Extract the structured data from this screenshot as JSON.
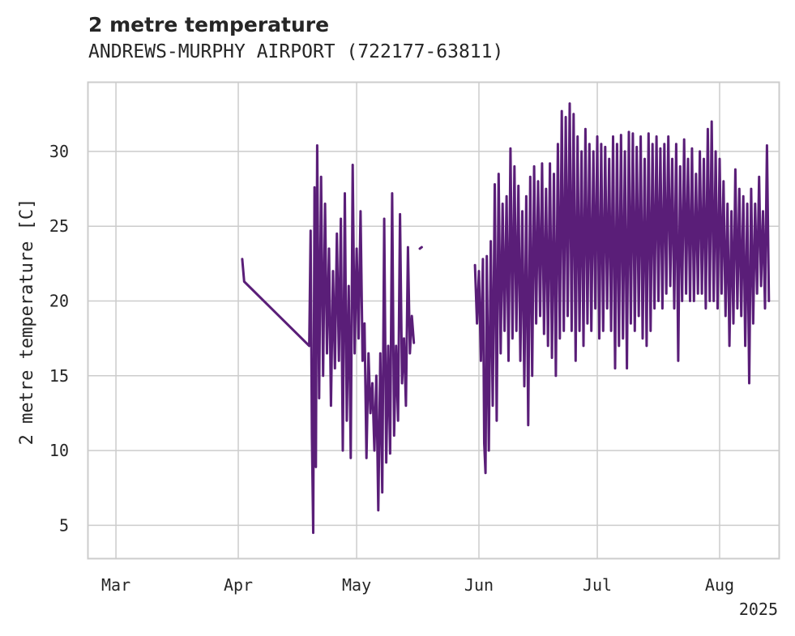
{
  "chart_data": {
    "type": "line",
    "title": "2 metre temperature",
    "subtitle": "ANDREWS-MURPHY AIRPORT (722177-63811)",
    "ylabel": "2 metre temperature [C]",
    "xlabel": "",
    "x_range": [
      "2025-02-22",
      "2025-08-16"
    ],
    "ylim": [
      2.8,
      34.6
    ],
    "y_ticks": [
      5,
      10,
      15,
      20,
      25,
      30
    ],
    "x_ticks": [
      {
        "date": "2025-03-01",
        "label": "Mar"
      },
      {
        "date": "2025-04-01",
        "label": "Apr"
      },
      {
        "date": "2025-05-01",
        "label": "May"
      },
      {
        "date": "2025-06-01",
        "label": "Jun"
      },
      {
        "date": "2025-07-01",
        "label": "Jul"
      },
      {
        "date": "2025-08-01",
        "label": "Aug"
      }
    ],
    "x_offset_label": "2025",
    "grid": true,
    "series": [
      {
        "color": "#5a1e78",
        "points": [
          [
            "2025-04-02",
            22.8
          ],
          [
            "2025-04-02",
            21.3
          ],
          [
            "2025-04-19",
            17.0
          ],
          [
            "2025-04-19",
            24.7
          ],
          [
            "2025-04-19",
            11.0
          ],
          [
            "2025-04-20",
            4.5
          ],
          [
            "2025-04-20",
            27.6
          ],
          [
            "2025-04-20",
            8.9
          ],
          [
            "2025-04-21",
            30.4
          ],
          [
            "2025-04-21",
            13.5
          ],
          [
            "2025-04-22",
            28.3
          ],
          [
            "2025-04-22",
            15.0
          ],
          [
            "2025-04-23",
            26.5
          ],
          [
            "2025-04-23",
            16.5
          ],
          [
            "2025-04-24",
            23.5
          ],
          [
            "2025-04-24",
            13.0
          ],
          [
            "2025-04-25",
            22.0
          ],
          [
            "2025-04-25",
            15.5
          ],
          [
            "2025-04-26",
            24.5
          ],
          [
            "2025-04-26",
            16.0
          ],
          [
            "2025-04-27",
            25.5
          ],
          [
            "2025-04-27",
            10.0
          ],
          [
            "2025-04-28",
            27.2
          ],
          [
            "2025-04-28",
            12.0
          ],
          [
            "2025-04-29",
            21.0
          ],
          [
            "2025-04-29",
            9.5
          ],
          [
            "2025-04-30",
            29.1
          ],
          [
            "2025-04-30",
            16.5
          ],
          [
            "2025-05-01",
            23.5
          ],
          [
            "2025-05-01",
            17.5
          ],
          [
            "2025-05-02",
            26.0
          ],
          [
            "2025-05-02",
            16.0
          ],
          [
            "2025-05-03",
            18.5
          ],
          [
            "2025-05-03",
            9.5
          ],
          [
            "2025-05-04",
            16.5
          ],
          [
            "2025-05-04",
            12.5
          ],
          [
            "2025-05-05",
            14.5
          ],
          [
            "2025-05-05",
            10.0
          ],
          [
            "2025-05-06",
            15.0
          ],
          [
            "2025-05-06",
            6.0
          ],
          [
            "2025-05-07",
            16.5
          ],
          [
            "2025-05-07",
            7.2
          ],
          [
            "2025-05-08",
            25.5
          ],
          [
            "2025-05-08",
            9.2
          ],
          [
            "2025-05-09",
            17.0
          ],
          [
            "2025-05-09",
            9.8
          ],
          [
            "2025-05-10",
            27.2
          ],
          [
            "2025-05-10",
            11.0
          ],
          [
            "2025-05-11",
            17.0
          ],
          [
            "2025-05-11",
            12.0
          ],
          [
            "2025-05-12",
            25.8
          ],
          [
            "2025-05-12",
            14.5
          ],
          [
            "2025-05-13",
            17.5
          ],
          [
            "2025-05-13",
            13.0
          ],
          [
            "2025-05-14",
            23.6
          ],
          [
            "2025-05-14",
            16.5
          ],
          [
            "2025-05-15",
            19.0
          ],
          [
            "2025-05-15",
            17.2
          ],
          null,
          [
            "2025-05-17",
            23.5
          ],
          [
            "2025-05-17",
            23.6
          ],
          null,
          [
            "2025-05-31",
            22.4
          ],
          [
            "2025-05-31",
            18.5
          ],
          [
            "2025-06-01",
            22.0
          ],
          [
            "2025-06-01",
            16.0
          ],
          [
            "2025-06-02",
            22.8
          ],
          [
            "2025-06-02",
            10.5
          ],
          [
            "2025-06-02",
            8.5
          ],
          [
            "2025-06-03",
            23.0
          ],
          [
            "2025-06-03",
            10.0
          ],
          [
            "2025-06-04",
            24.0
          ],
          [
            "2025-06-04",
            13.0
          ],
          [
            "2025-06-05",
            27.8
          ],
          [
            "2025-06-05",
            12.0
          ],
          [
            "2025-06-06",
            28.5
          ],
          [
            "2025-06-06",
            16.5
          ],
          [
            "2025-06-07",
            26.5
          ],
          [
            "2025-06-07",
            18.0
          ],
          [
            "2025-06-08",
            27.0
          ],
          [
            "2025-06-08",
            16.0
          ],
          [
            "2025-06-09",
            30.2
          ],
          [
            "2025-06-09",
            17.5
          ],
          [
            "2025-06-10",
            29.0
          ],
          [
            "2025-06-10",
            18.0
          ],
          [
            "2025-06-11",
            27.7
          ],
          [
            "2025-06-11",
            16.0
          ],
          [
            "2025-06-12",
            26.0
          ],
          [
            "2025-06-12",
            14.3
          ],
          [
            "2025-06-13",
            27.0
          ],
          [
            "2025-06-13",
            11.7
          ],
          [
            "2025-06-14",
            28.3
          ],
          [
            "2025-06-14",
            15.0
          ],
          [
            "2025-06-15",
            29.0
          ],
          [
            "2025-06-15",
            18.5
          ],
          [
            "2025-06-16",
            28.0
          ],
          [
            "2025-06-16",
            19.0
          ],
          [
            "2025-06-17",
            29.2
          ],
          [
            "2025-06-17",
            17.8
          ],
          [
            "2025-06-18",
            27.5
          ],
          [
            "2025-06-18",
            17.0
          ],
          [
            "2025-06-19",
            29.2
          ],
          [
            "2025-06-19",
            16.2
          ],
          [
            "2025-06-20",
            28.5
          ],
          [
            "2025-06-20",
            15.0
          ],
          [
            "2025-06-21",
            30.5
          ],
          [
            "2025-06-21",
            17.5
          ],
          [
            "2025-06-22",
            32.7
          ],
          [
            "2025-06-22",
            18.0
          ],
          [
            "2025-06-23",
            32.3
          ],
          [
            "2025-06-23",
            19.0
          ],
          [
            "2025-06-24",
            33.2
          ],
          [
            "2025-06-24",
            18.0
          ],
          [
            "2025-06-25",
            32.5
          ],
          [
            "2025-06-25",
            16.0
          ],
          [
            "2025-06-26",
            31.0
          ],
          [
            "2025-06-26",
            18.0
          ],
          [
            "2025-06-27",
            30.0
          ],
          [
            "2025-06-27",
            17.0
          ],
          [
            "2025-06-28",
            31.5
          ],
          [
            "2025-06-28",
            18.5
          ],
          [
            "2025-06-29",
            30.5
          ],
          [
            "2025-06-29",
            18.0
          ],
          [
            "2025-06-30",
            30.0
          ],
          [
            "2025-06-30",
            19.5
          ],
          [
            "2025-07-01",
            31.0
          ],
          [
            "2025-07-01",
            17.5
          ],
          [
            "2025-07-02",
            30.5
          ],
          [
            "2025-07-02",
            18.0
          ],
          [
            "2025-07-03",
            30.3
          ],
          [
            "2025-07-03",
            19.5
          ],
          [
            "2025-07-04",
            29.5
          ],
          [
            "2025-07-04",
            18.0
          ],
          [
            "2025-07-05",
            31.0
          ],
          [
            "2025-07-05",
            15.5
          ],
          [
            "2025-07-06",
            30.5
          ],
          [
            "2025-07-06",
            17.0
          ],
          [
            "2025-07-07",
            31.1
          ],
          [
            "2025-07-07",
            17.5
          ],
          [
            "2025-07-08",
            30.0
          ],
          [
            "2025-07-08",
            15.5
          ],
          [
            "2025-07-09",
            31.3
          ],
          [
            "2025-07-09",
            18.5
          ],
          [
            "2025-07-10",
            31.2
          ],
          [
            "2025-07-10",
            18.0
          ],
          [
            "2025-07-11",
            30.3
          ],
          [
            "2025-07-11",
            19.0
          ],
          [
            "2025-07-12",
            31.0
          ],
          [
            "2025-07-12",
            17.5
          ],
          [
            "2025-07-13",
            29.5
          ],
          [
            "2025-07-13",
            17.0
          ],
          [
            "2025-07-14",
            31.2
          ],
          [
            "2025-07-14",
            18.0
          ],
          [
            "2025-07-15",
            30.5
          ],
          [
            "2025-07-15",
            19.5
          ],
          [
            "2025-07-16",
            31.0
          ],
          [
            "2025-07-16",
            20.0
          ],
          [
            "2025-07-17",
            30.2
          ],
          [
            "2025-07-17",
            19.5
          ],
          [
            "2025-07-18",
            30.5
          ],
          [
            "2025-07-18",
            20.5
          ],
          [
            "2025-07-19",
            31.0
          ],
          [
            "2025-07-19",
            21.0
          ],
          [
            "2025-07-20",
            29.5
          ],
          [
            "2025-07-20",
            19.5
          ],
          [
            "2025-07-21",
            30.5
          ],
          [
            "2025-07-21",
            16.0
          ],
          [
            "2025-07-22",
            29.0
          ],
          [
            "2025-07-22",
            20.0
          ],
          [
            "2025-07-23",
            30.8
          ],
          [
            "2025-07-23",
            20.5
          ],
          [
            "2025-07-24",
            29.5
          ],
          [
            "2025-07-24",
            20.0
          ],
          [
            "2025-07-25",
            30.2
          ],
          [
            "2025-07-25",
            20.0
          ],
          [
            "2025-07-26",
            28.5
          ],
          [
            "2025-07-26",
            20.5
          ],
          [
            "2025-07-27",
            30.0
          ],
          [
            "2025-07-27",
            20.5
          ],
          [
            "2025-07-28",
            29.5
          ],
          [
            "2025-07-28",
            19.5
          ],
          [
            "2025-07-29",
            31.5
          ],
          [
            "2025-07-29",
            20.0
          ],
          [
            "2025-07-30",
            32.0
          ],
          [
            "2025-07-30",
            20.0
          ],
          [
            "2025-07-31",
            30.0
          ],
          [
            "2025-07-31",
            19.5
          ],
          [
            "2025-08-01",
            29.5
          ],
          [
            "2025-08-01",
            20.5
          ],
          [
            "2025-08-02",
            28.0
          ],
          [
            "2025-08-02",
            19.0
          ],
          [
            "2025-08-03",
            26.5
          ],
          [
            "2025-08-03",
            17.0
          ],
          [
            "2025-08-04",
            26.0
          ],
          [
            "2025-08-04",
            18.5
          ],
          [
            "2025-08-05",
            28.8
          ],
          [
            "2025-08-05",
            19.5
          ],
          [
            "2025-08-06",
            27.5
          ],
          [
            "2025-08-06",
            19.0
          ],
          [
            "2025-08-07",
            27.0
          ],
          [
            "2025-08-07",
            17.0
          ],
          [
            "2025-08-08",
            26.5
          ],
          [
            "2025-08-08",
            14.5
          ],
          [
            "2025-08-09",
            27.5
          ],
          [
            "2025-08-09",
            18.5
          ],
          [
            "2025-08-10",
            26.5
          ],
          [
            "2025-08-10",
            20.5
          ],
          [
            "2025-08-11",
            28.3
          ],
          [
            "2025-08-11",
            21.0
          ],
          [
            "2025-08-12",
            26.0
          ],
          [
            "2025-08-12",
            19.5
          ],
          [
            "2025-08-13",
            30.4
          ],
          [
            "2025-08-13",
            20.0
          ]
        ]
      }
    ]
  }
}
